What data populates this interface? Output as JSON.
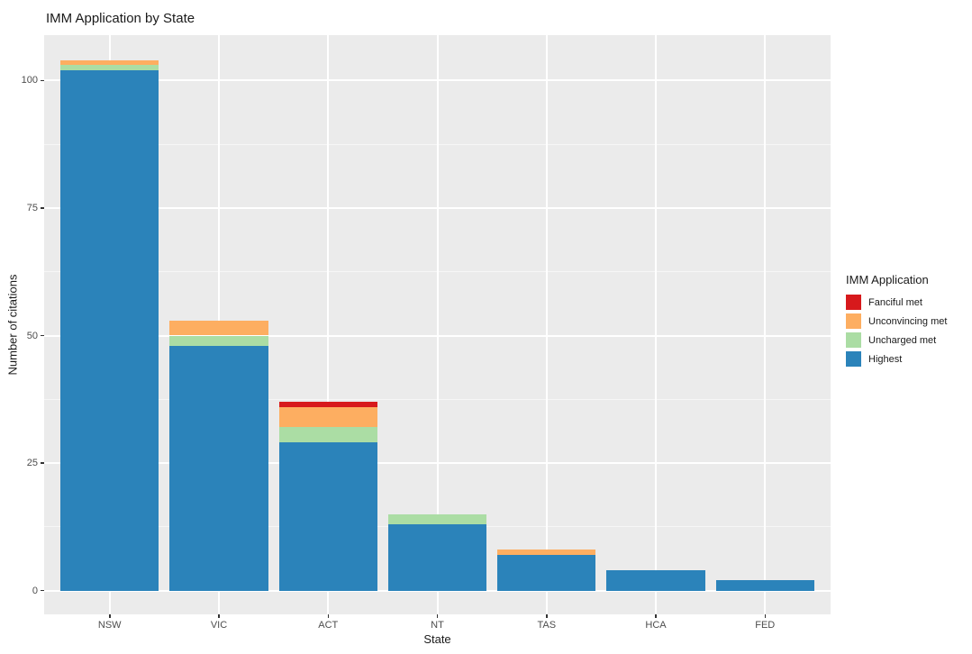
{
  "title": "IMM Application by State",
  "x_axis": {
    "title": "State"
  },
  "y_axis": {
    "title": "Number of citations"
  },
  "legend": {
    "title": "IMM Application",
    "entries": [
      {
        "label": "Fanciful met",
        "color": "#D7191C"
      },
      {
        "label": "Unconvincing met",
        "color": "#FDAE61"
      },
      {
        "label": "Uncharged met",
        "color": "#ABDDA4"
      },
      {
        "label": "Highest",
        "color": "#2B83BA"
      }
    ]
  },
  "colors": {
    "panel_background": "#EBEBEB",
    "gridline": "#FFFFFF",
    "tick_text": "#4D4D4D",
    "axis_text": "#1A1A1A",
    "red": "#D7191C",
    "orange": "#FDAE61",
    "green": "#ABDDA4",
    "blue": "#2B83BA"
  },
  "chart_data": {
    "type": "bar",
    "stacked": true,
    "title": "IMM Application by State",
    "xlabel": "State",
    "ylabel": "Number of citations",
    "categories": [
      "NSW",
      "VIC",
      "ACT",
      "NT",
      "TAS",
      "HCA",
      "FED"
    ],
    "series": [
      {
        "name": "Highest",
        "color": "#2B83BA",
        "values": [
          102,
          48,
          29,
          13,
          7,
          4,
          2
        ]
      },
      {
        "name": "Uncharged met",
        "color": "#ABDDA4",
        "values": [
          1,
          2,
          3,
          2,
          0,
          0,
          0
        ]
      },
      {
        "name": "Unconvincing met",
        "color": "#FDAE61",
        "values": [
          1,
          3,
          4,
          0,
          1,
          0,
          0
        ]
      },
      {
        "name": "Fanciful met",
        "color": "#D7191C",
        "values": [
          0,
          0,
          1,
          0,
          0,
          0,
          0
        ]
      }
    ],
    "stack_order_bottom_to_top": [
      "Highest",
      "Uncharged met",
      "Unconvincing met",
      "Fanciful met"
    ],
    "totals": [
      104,
      53,
      37,
      15,
      8,
      4,
      2
    ],
    "y_ticks": [
      0,
      25,
      50,
      75,
      100
    ],
    "y_minor_ticks": [
      12.5,
      37.5,
      62.5,
      87.5
    ],
    "ylim": [
      -4.7,
      108.9
    ],
    "grid": true,
    "legend_position": "right"
  }
}
